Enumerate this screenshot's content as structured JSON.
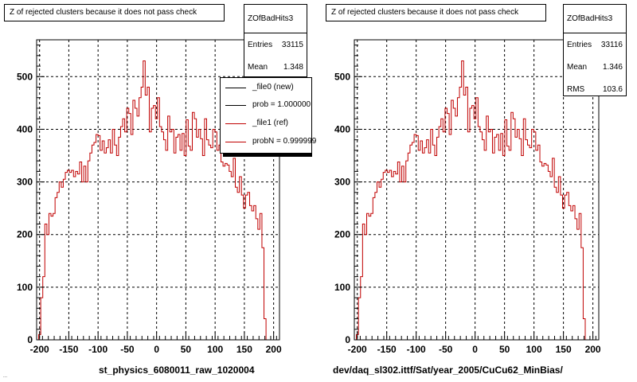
{
  "colors": {
    "hist": "#c00000",
    "axis": "#000000",
    "grid": "#000000",
    "background": "#ffffff"
  },
  "panels": [
    {
      "title": "Z of rejected clusters  because it does not pass check",
      "stats": {
        "name": "ZOfBadHits3",
        "entries_label": "Entries",
        "entries": "33115",
        "mean_label": "Mean",
        "mean": "1.348"
      },
      "legend": [
        {
          "label": "_file0 (new)",
          "color": "#000000"
        },
        {
          "label": "prob = 1.000000",
          "color": "#000000"
        },
        {
          "label": "_file1 (ref)",
          "color": "#c00000"
        },
        {
          "label": "probN = 0.999999",
          "color": "#c00000"
        }
      ],
      "caption": "st_physics_6080011_raw_1020004"
    },
    {
      "title": "Z of rejected clusters  because it does not pass check",
      "stats": {
        "name": "ZOfBadHits3",
        "entries_label": "Entries",
        "entries": "33116",
        "mean_label": "Mean",
        "mean": "1.346",
        "rms_label": "RMS",
        "rms": "103.6"
      },
      "caption": "dev/daq_sl302.ittf/Sat/year_2005/CuCu62_MinBias/"
    }
  ],
  "footer_note": "...",
  "chart_data": [
    {
      "type": "histogram",
      "title": "Z of rejected clusters  because it does not pass check",
      "xlabel": "st_physics_6080011_raw_1020004",
      "ylabel": "",
      "xlim": [
        -205,
        210
      ],
      "ylim": [
        0,
        570
      ],
      "xticks": [
        -200,
        -150,
        -100,
        -50,
        0,
        50,
        100,
        150,
        200
      ],
      "yticks": [
        0,
        100,
        200,
        300,
        400,
        500
      ],
      "grid": true,
      "bins": {
        "start": -205,
        "width": 3.5
      },
      "values": [
        0,
        10,
        80,
        120,
        220,
        200,
        240,
        235,
        240,
        270,
        280,
        300,
        290,
        305,
        318,
        322,
        318,
        322,
        310,
        320,
        315,
        338,
        300,
        330,
        300,
        340,
        355,
        370,
        375,
        390,
        388,
        360,
        378,
        355,
        365,
        380,
        355,
        400,
        370,
        350,
        385,
        405,
        420,
        395,
        440,
        430,
        390,
        455,
        440,
        425,
        460,
        480,
        530,
        465,
        480,
        395,
        440,
        445,
        420,
        460,
        405,
        395,
        380,
        360,
        425,
        395,
        400,
        355,
        385,
        390,
        360,
        392,
        350,
        418,
        368,
        360,
        432,
        420,
        385,
        400,
        382,
        350,
        420,
        380,
        370,
        365,
        400,
        395,
        360,
        370,
        338,
        330,
        335,
        332,
        320,
        310,
        345,
        290,
        280,
        310,
        275,
        250,
        275,
        280,
        255,
        245,
        255,
        230,
        210,
        240,
        175,
        40,
        0
      ]
    },
    {
      "type": "histogram",
      "title": "Z of rejected clusters  because it does not pass check",
      "xlabel": "dev/daq_sl302.ittf/Sat/year_2005/CuCu62_MinBias/",
      "ylabel": "",
      "xlim": [
        -205,
        210
      ],
      "ylim": [
        0,
        570
      ],
      "xticks": [
        -200,
        -150,
        -100,
        -50,
        0,
        50,
        100,
        150,
        200
      ],
      "yticks": [
        0,
        100,
        200,
        300,
        400,
        500
      ],
      "grid": true,
      "bins": {
        "start": -205,
        "width": 3.5
      },
      "values": [
        0,
        10,
        80,
        120,
        220,
        200,
        240,
        235,
        240,
        270,
        280,
        300,
        290,
        305,
        318,
        322,
        318,
        322,
        310,
        320,
        315,
        338,
        300,
        330,
        300,
        340,
        355,
        370,
        375,
        390,
        388,
        360,
        378,
        355,
        365,
        380,
        355,
        400,
        370,
        350,
        385,
        405,
        420,
        395,
        440,
        430,
        390,
        455,
        440,
        425,
        460,
        480,
        530,
        465,
        480,
        395,
        440,
        445,
        420,
        460,
        405,
        395,
        380,
        360,
        425,
        395,
        400,
        355,
        385,
        390,
        360,
        392,
        350,
        418,
        368,
        360,
        432,
        420,
        385,
        400,
        382,
        350,
        420,
        380,
        370,
        365,
        400,
        395,
        360,
        370,
        338,
        330,
        335,
        332,
        320,
        310,
        345,
        290,
        280,
        310,
        275,
        250,
        275,
        280,
        255,
        245,
        255,
        230,
        210,
        240,
        175,
        40,
        0
      ]
    }
  ]
}
